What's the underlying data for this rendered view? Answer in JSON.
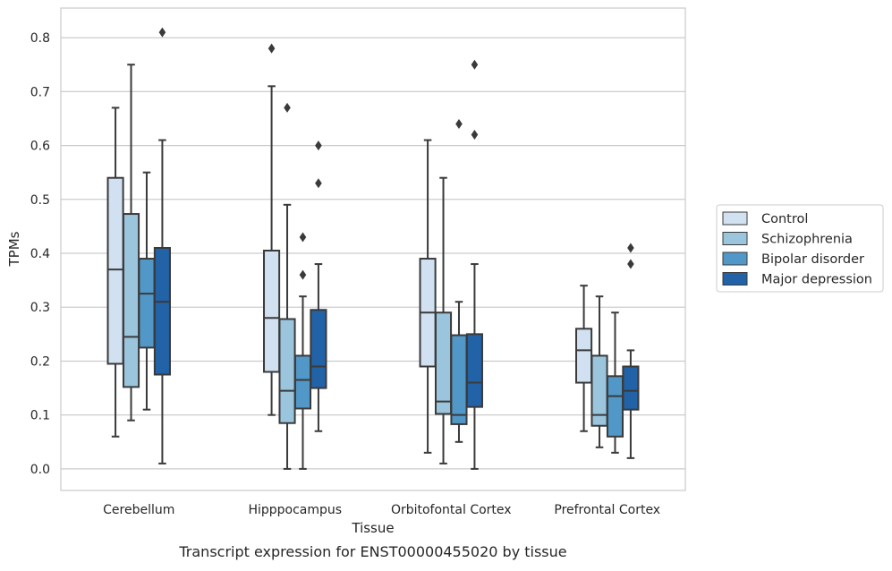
{
  "caption": "Transcript expression for ENST00000455020 by tissue",
  "colors": {
    "Control": "#d1e1f1",
    "Schizophrenia": "#9bc5dd",
    "Bipolar disorder": "#5198c8",
    "Major depression": "#2262a7",
    "line": "#3a3a3a",
    "grid": "#cccccc",
    "frame": "#cccccc"
  },
  "chart_data": {
    "type": "box",
    "title": "",
    "xlabel": "Tissue",
    "ylabel": "TPMs",
    "ylim": [
      -0.04,
      0.855
    ],
    "yticks": [
      0.0,
      0.1,
      0.2,
      0.3,
      0.4,
      0.5,
      0.6,
      0.7,
      0.8
    ],
    "ytick_labels": [
      "0.0",
      "0.1",
      "0.2",
      "0.3",
      "0.4",
      "0.5",
      "0.6",
      "0.7",
      "0.8"
    ],
    "grid": true,
    "legend_position": "right",
    "categories": [
      "Cerebellum",
      "Hipppocampus",
      "Orbitofontal Cortex",
      "Prefrontal Cortex"
    ],
    "series": [
      {
        "name": "Control",
        "boxes": [
          {
            "whislo": 0.06,
            "q1": 0.195,
            "med": 0.37,
            "q3": 0.54,
            "whishi": 0.67,
            "fliers": []
          },
          {
            "whislo": 0.1,
            "q1": 0.18,
            "med": 0.28,
            "q3": 0.405,
            "whishi": 0.71,
            "fliers": [
              0.78
            ]
          },
          {
            "whislo": 0.03,
            "q1": 0.19,
            "med": 0.29,
            "q3": 0.39,
            "whishi": 0.61,
            "fliers": []
          },
          {
            "whislo": 0.07,
            "q1": 0.16,
            "med": 0.22,
            "q3": 0.26,
            "whishi": 0.34,
            "fliers": []
          }
        ]
      },
      {
        "name": "Schizophrenia",
        "boxes": [
          {
            "whislo": 0.09,
            "q1": 0.152,
            "med": 0.245,
            "q3": 0.473,
            "whishi": 0.75,
            "fliers": []
          },
          {
            "whislo": 0.0,
            "q1": 0.085,
            "med": 0.145,
            "q3": 0.278,
            "whishi": 0.49,
            "fliers": [
              0.67
            ]
          },
          {
            "whislo": 0.01,
            "q1": 0.102,
            "med": 0.125,
            "q3": 0.29,
            "whishi": 0.54,
            "fliers": []
          },
          {
            "whislo": 0.04,
            "q1": 0.08,
            "med": 0.1,
            "q3": 0.21,
            "whishi": 0.32,
            "fliers": []
          }
        ]
      },
      {
        "name": "Bipolar disorder",
        "boxes": [
          {
            "whislo": 0.11,
            "q1": 0.225,
            "med": 0.325,
            "q3": 0.39,
            "whishi": 0.55,
            "fliers": []
          },
          {
            "whislo": 0.0,
            "q1": 0.112,
            "med": 0.165,
            "q3": 0.21,
            "whishi": 0.32,
            "fliers": [
              0.36,
              0.43
            ]
          },
          {
            "whislo": 0.05,
            "q1": 0.083,
            "med": 0.1,
            "q3": 0.248,
            "whishi": 0.31,
            "fliers": [
              0.64
            ]
          },
          {
            "whislo": 0.03,
            "q1": 0.06,
            "med": 0.135,
            "q3": 0.172,
            "whishi": 0.29,
            "fliers": []
          }
        ]
      },
      {
        "name": "Major depression",
        "boxes": [
          {
            "whislo": 0.01,
            "q1": 0.175,
            "med": 0.31,
            "q3": 0.41,
            "whishi": 0.61,
            "fliers": [
              0.81
            ]
          },
          {
            "whislo": 0.07,
            "q1": 0.15,
            "med": 0.19,
            "q3": 0.295,
            "whishi": 0.38,
            "fliers": [
              0.53,
              0.6
            ]
          },
          {
            "whislo": 0.0,
            "q1": 0.115,
            "med": 0.16,
            "q3": 0.25,
            "whishi": 0.38,
            "fliers": [
              0.62,
              0.75
            ]
          },
          {
            "whislo": 0.02,
            "q1": 0.11,
            "med": 0.145,
            "q3": 0.19,
            "whishi": 0.22,
            "fliers": [
              0.38,
              0.41
            ]
          }
        ]
      }
    ]
  }
}
